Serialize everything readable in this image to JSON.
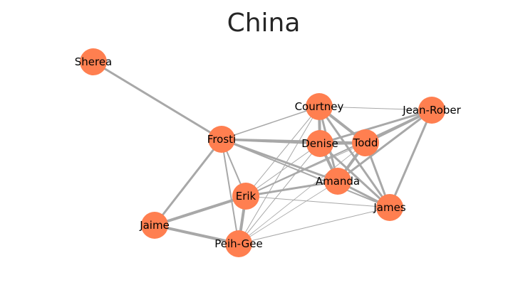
{
  "title": "China",
  "colors": {
    "node": "#ff7f50",
    "edge": "#a8a8a8",
    "title": "#262626"
  },
  "nodes": [
    {
      "id": "Sherea",
      "label": "Sherea"
    },
    {
      "id": "Frosti",
      "label": "Frosti"
    },
    {
      "id": "Courtney",
      "label": "Courtney"
    },
    {
      "id": "Jean-Robert",
      "label": "Jean-Rober"
    },
    {
      "id": "Denise",
      "label": "Denise"
    },
    {
      "id": "Todd",
      "label": "Todd"
    },
    {
      "id": "Amanda",
      "label": "Amanda"
    },
    {
      "id": "Erik",
      "label": "Erik"
    },
    {
      "id": "James",
      "label": "James"
    },
    {
      "id": "Jaime",
      "label": "Jaime"
    },
    {
      "id": "Peih-Gee",
      "label": "Peih-Gee"
    }
  ],
  "edges": [
    {
      "source": "Sherea",
      "target": "Frosti",
      "weight": 3
    },
    {
      "source": "Frosti",
      "target": "Courtney",
      "weight": 1.5
    },
    {
      "source": "Frosti",
      "target": "Denise",
      "weight": 3
    },
    {
      "source": "Frosti",
      "target": "Todd",
      "weight": 3
    },
    {
      "source": "Frosti",
      "target": "Amanda",
      "weight": 3
    },
    {
      "source": "Frosti",
      "target": "James",
      "weight": 2
    },
    {
      "source": "Frosti",
      "target": "Erik",
      "weight": 2
    },
    {
      "source": "Frosti",
      "target": "Jaime",
      "weight": 3
    },
    {
      "source": "Frosti",
      "target": "Peih-Gee",
      "weight": 2
    },
    {
      "source": "Courtney",
      "target": "Jean-Robert",
      "weight": 1
    },
    {
      "source": "Courtney",
      "target": "Denise",
      "weight": 4
    },
    {
      "source": "Courtney",
      "target": "Todd",
      "weight": 4
    },
    {
      "source": "Courtney",
      "target": "Amanda",
      "weight": 3
    },
    {
      "source": "Courtney",
      "target": "James",
      "weight": 3
    },
    {
      "source": "Courtney",
      "target": "Erik",
      "weight": 1
    },
    {
      "source": "Courtney",
      "target": "Peih-Gee",
      "weight": 1
    },
    {
      "source": "Jean-Robert",
      "target": "Denise",
      "weight": 3
    },
    {
      "source": "Jean-Robert",
      "target": "Todd",
      "weight": 4
    },
    {
      "source": "Jean-Robert",
      "target": "Amanda",
      "weight": 3
    },
    {
      "source": "Jean-Robert",
      "target": "James",
      "weight": 3
    },
    {
      "source": "Jean-Robert",
      "target": "Erik",
      "weight": 2
    },
    {
      "source": "Denise",
      "target": "Todd",
      "weight": 4
    },
    {
      "source": "Denise",
      "target": "Amanda",
      "weight": 4
    },
    {
      "source": "Denise",
      "target": "James",
      "weight": 3
    },
    {
      "source": "Denise",
      "target": "Erik",
      "weight": 1
    },
    {
      "source": "Denise",
      "target": "Peih-Gee",
      "weight": 1
    },
    {
      "source": "Todd",
      "target": "Amanda",
      "weight": 4
    },
    {
      "source": "Todd",
      "target": "James",
      "weight": 3
    },
    {
      "source": "Todd",
      "target": "Erik",
      "weight": 1
    },
    {
      "source": "Todd",
      "target": "Peih-Gee",
      "weight": 0.8
    },
    {
      "source": "Amanda",
      "target": "Erik",
      "weight": 3
    },
    {
      "source": "Amanda",
      "target": "James",
      "weight": 3
    },
    {
      "source": "Amanda",
      "target": "Peih-Gee",
      "weight": 0.8
    },
    {
      "source": "Erik",
      "target": "James",
      "weight": 1
    },
    {
      "source": "Erik",
      "target": "Jaime",
      "weight": 4
    },
    {
      "source": "Erik",
      "target": "Peih-Gee",
      "weight": 4
    },
    {
      "source": "James",
      "target": "Peih-Gee",
      "weight": 1
    },
    {
      "source": "Jaime",
      "target": "Peih-Gee",
      "weight": 4
    }
  ]
}
